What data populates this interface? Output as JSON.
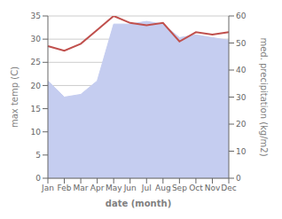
{
  "chart_data": {
    "type": "line",
    "categories": [
      "Jan",
      "Feb",
      "Mar",
      "Apr",
      "May",
      "Jun",
      "Jul",
      "Aug",
      "Sep",
      "Oct",
      "Nov",
      "Dec"
    ],
    "xlabel": "date (month)",
    "ylabel": "max temp (C)",
    "y2label": "med. precipitation (kg/m2)",
    "ylim": [
      0,
      35
    ],
    "yticks": [
      0,
      5,
      10,
      15,
      20,
      25,
      30,
      35
    ],
    "y2lim": [
      0,
      60
    ],
    "y2ticks": [
      0,
      10,
      20,
      30,
      40,
      50,
      60
    ],
    "grid": true,
    "series": [
      {
        "type": "area",
        "axis": "y2",
        "color": "#c5cdf0",
        "values": [
          36,
          30,
          31,
          36,
          57,
          57,
          58,
          57,
          52,
          53,
          52,
          51
        ]
      },
      {
        "type": "line",
        "color": "#c0504d",
        "values": [
          28.5,
          27.5,
          29.0,
          32.0,
          35.0,
          33.5,
          33.0,
          33.5,
          29.5,
          31.5,
          31.0,
          31.5
        ]
      }
    ]
  }
}
